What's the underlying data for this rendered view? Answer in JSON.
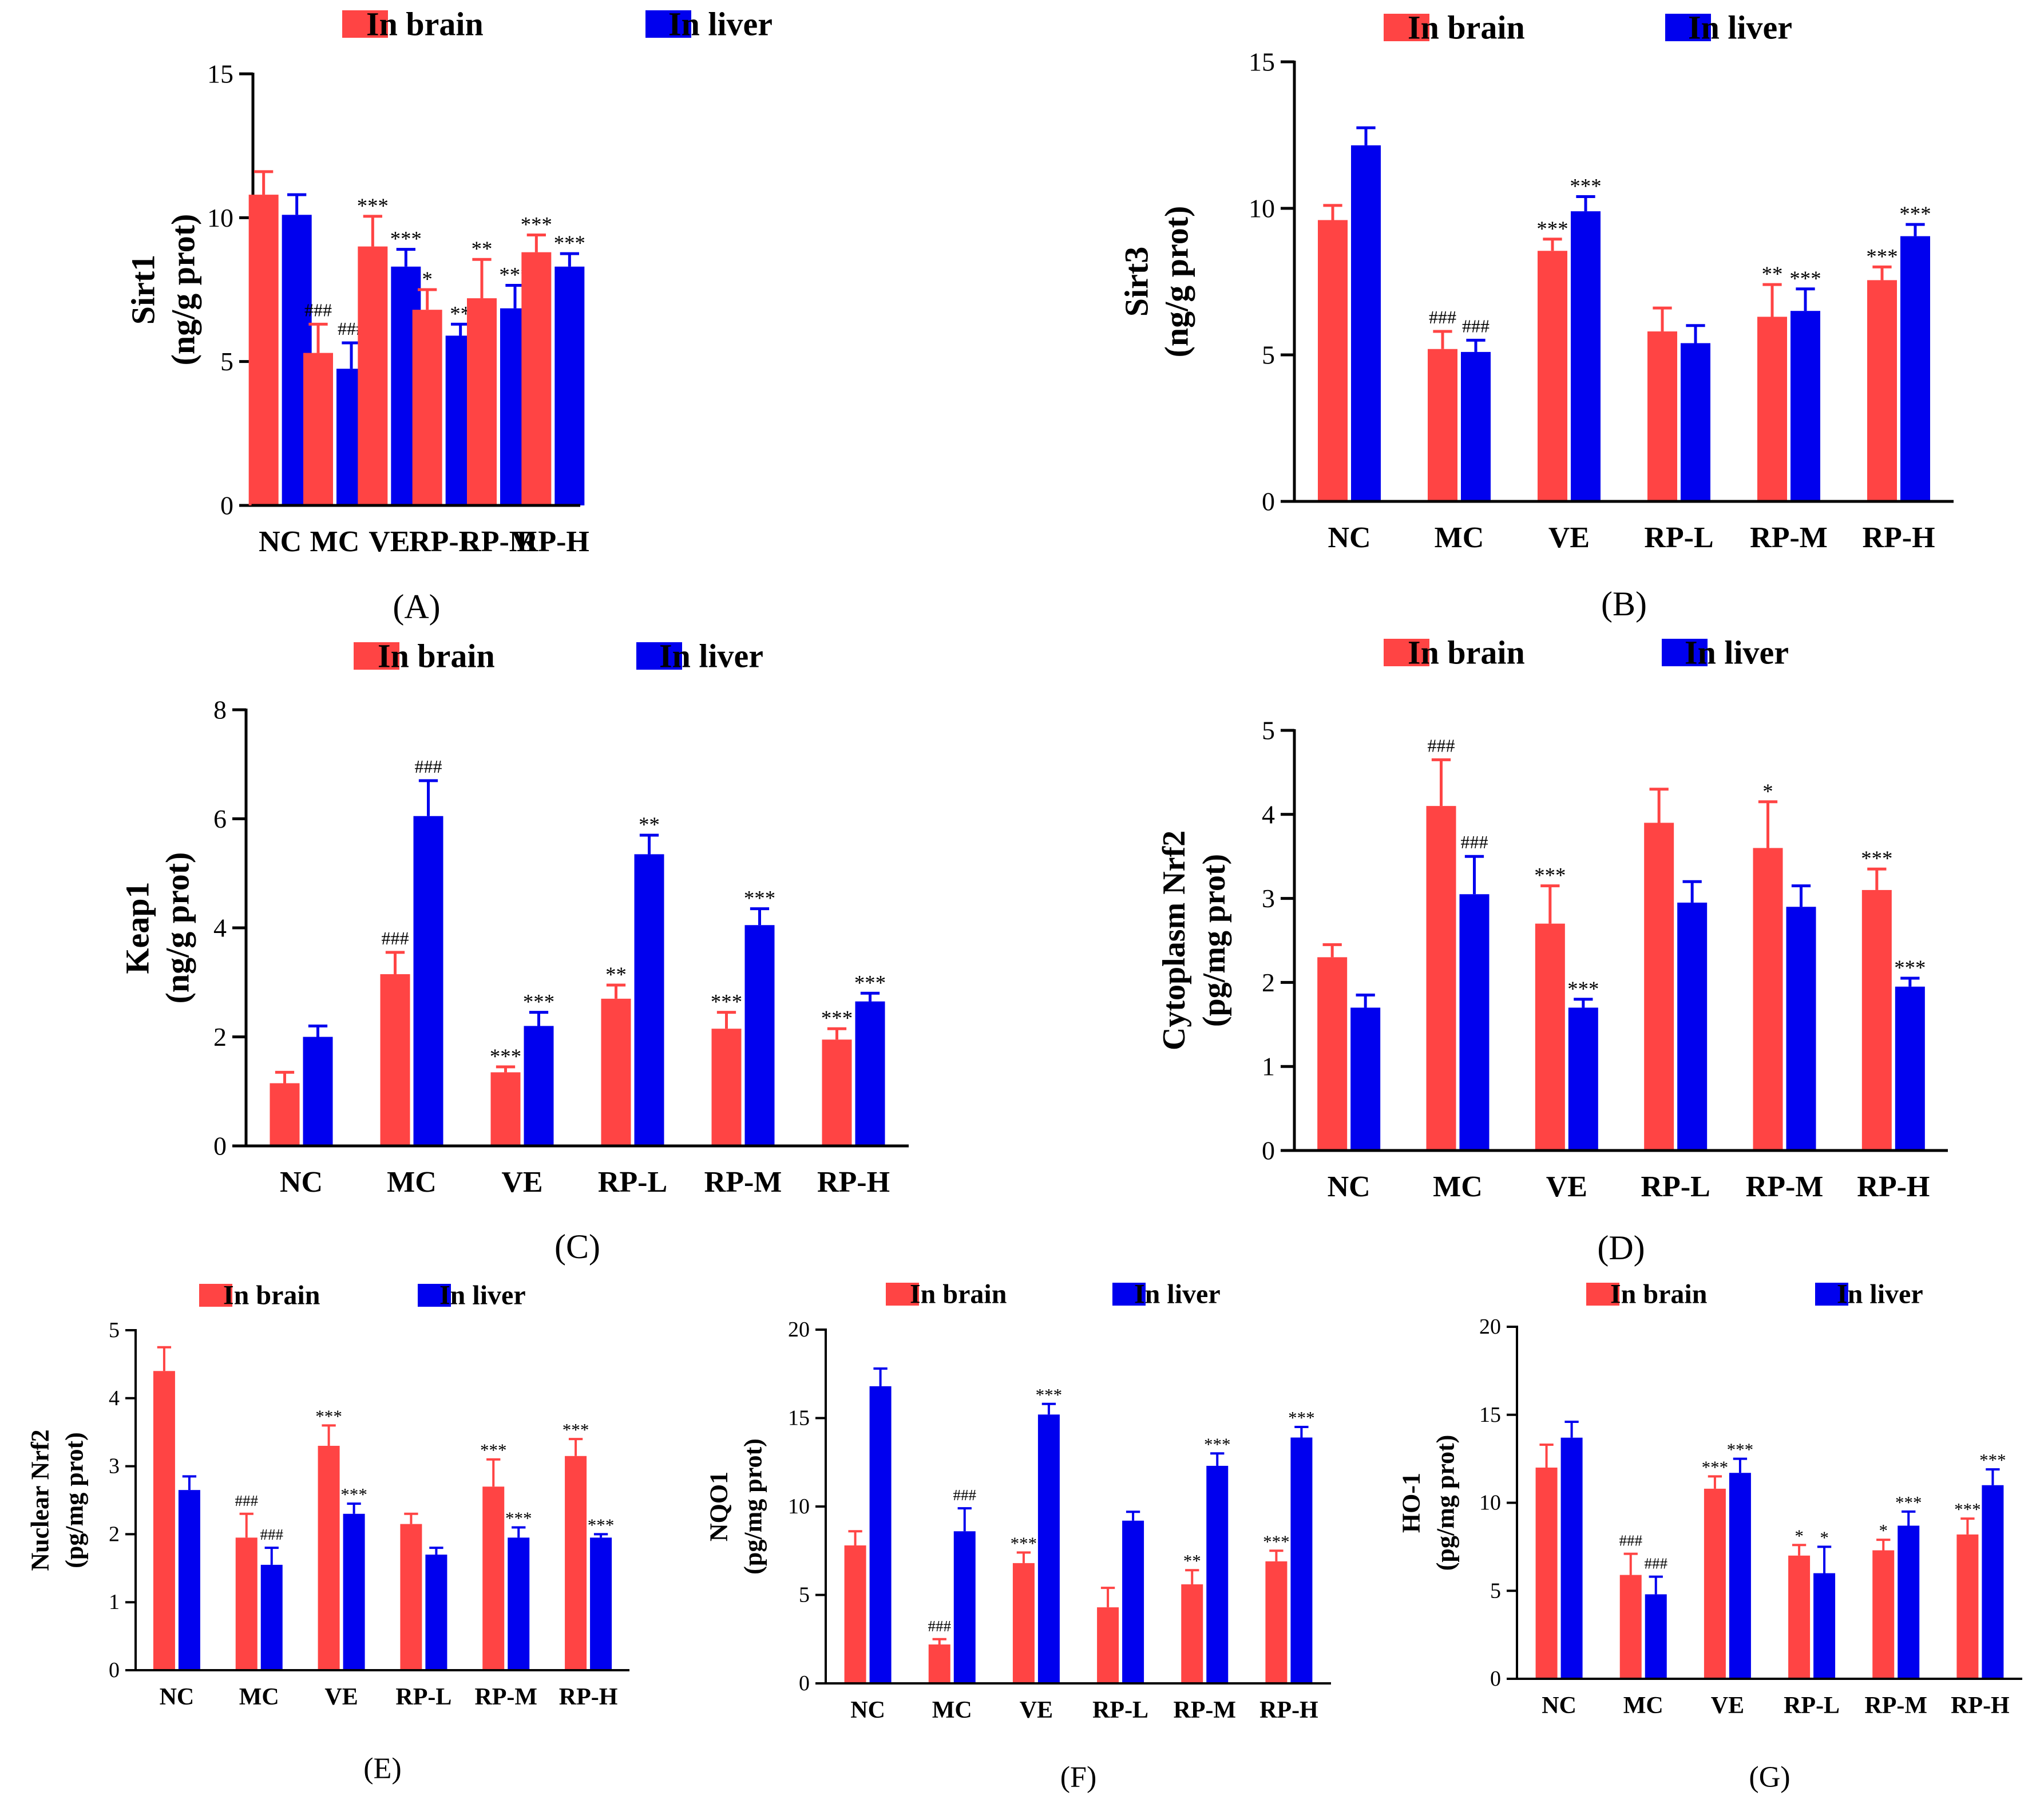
{
  "colors": {
    "brain": "#ff4444",
    "liver": "#0000ee",
    "axis": "#000000"
  },
  "legend": {
    "brain": "In brain",
    "liver": "In liver"
  },
  "chart_data": [
    {
      "type": "bar",
      "panel_label": "(A)",
      "ylabel_lines": [
        "Sirt1",
        "(ng/g prot)"
      ],
      "categories": [
        "NC",
        "MC",
        "VE",
        "RP-L",
        "RP-M",
        "RP-H"
      ],
      "ylim": [
        0,
        15
      ],
      "yticks": [
        0,
        5,
        10,
        15
      ],
      "series": [
        {
          "name": "In brain",
          "values": [
            10.8,
            5.3,
            9.0,
            6.8,
            7.2,
            8.8
          ],
          "errors": [
            0.8,
            1.0,
            1.05,
            0.7,
            1.35,
            0.6
          ],
          "labels": [
            "",
            "###",
            "***",
            "*",
            "**",
            "***"
          ]
        },
        {
          "name": "In liver",
          "values": [
            10.1,
            4.75,
            8.3,
            5.9,
            6.85,
            8.3
          ],
          "errors": [
            0.7,
            0.9,
            0.6,
            0.4,
            0.8,
            0.45
          ],
          "labels": [
            "",
            "###",
            "***",
            "**",
            "***",
            "***"
          ]
        }
      ]
    },
    {
      "type": "bar",
      "panel_label": "(B)",
      "ylabel_lines": [
        "Sirt3",
        "(ng/g prot)"
      ],
      "categories": [
        "NC",
        "MC",
        "VE",
        "RP-L",
        "RP-M",
        "RP-H"
      ],
      "ylim": [
        0,
        15
      ],
      "yticks": [
        0,
        5,
        10,
        15
      ],
      "series": [
        {
          "name": "In brain",
          "values": [
            9.6,
            5.2,
            8.55,
            5.8,
            6.3,
            7.55
          ],
          "errors": [
            0.5,
            0.6,
            0.4,
            0.8,
            1.1,
            0.45
          ],
          "labels": [
            "",
            "###",
            "***",
            "",
            "**",
            "***"
          ]
        },
        {
          "name": "In liver",
          "values": [
            12.15,
            5.1,
            9.9,
            5.4,
            6.5,
            9.05
          ],
          "errors": [
            0.6,
            0.4,
            0.5,
            0.6,
            0.75,
            0.4
          ],
          "labels": [
            "",
            "###",
            "***",
            "",
            "***",
            "***"
          ]
        }
      ]
    },
    {
      "type": "bar",
      "panel_label": "(C)",
      "ylabel_lines": [
        "Keap1",
        "(ng/g prot)"
      ],
      "categories": [
        "NC",
        "MC",
        "VE",
        "RP-L",
        "RP-M",
        "RP-H"
      ],
      "ylim": [
        0,
        8
      ],
      "yticks": [
        0,
        2,
        4,
        6,
        8
      ],
      "series": [
        {
          "name": "In brain",
          "values": [
            1.15,
            3.15,
            1.35,
            2.7,
            2.15,
            1.95
          ],
          "errors": [
            0.2,
            0.4,
            0.1,
            0.25,
            0.3,
            0.2
          ],
          "labels": [
            "",
            "###",
            "***",
            "**",
            "***",
            "***"
          ]
        },
        {
          "name": "In liver",
          "values": [
            2.0,
            6.05,
            2.2,
            5.35,
            4.05,
            2.65
          ],
          "errors": [
            0.2,
            0.65,
            0.25,
            0.35,
            0.3,
            0.15
          ],
          "labels": [
            "",
            "###",
            "***",
            "**",
            "***",
            "***"
          ]
        }
      ]
    },
    {
      "type": "bar",
      "panel_label": "(D)",
      "ylabel_lines": [
        "Cytoplasm Nrf2",
        "(pg/mg prot)"
      ],
      "categories": [
        "NC",
        "MC",
        "VE",
        "RP-L",
        "RP-M",
        "RP-H"
      ],
      "ylim": [
        0,
        5
      ],
      "yticks": [
        0,
        1,
        2,
        3,
        4,
        5
      ],
      "series": [
        {
          "name": "In brain",
          "values": [
            2.3,
            4.1,
            2.7,
            3.9,
            3.6,
            3.1
          ],
          "errors": [
            0.15,
            0.55,
            0.45,
            0.4,
            0.55,
            0.25
          ],
          "labels": [
            "",
            "###",
            "***",
            "",
            "*",
            "***"
          ]
        },
        {
          "name": "In liver",
          "values": [
            1.7,
            3.05,
            1.7,
            2.95,
            2.9,
            1.95
          ],
          "errors": [
            0.15,
            0.45,
            0.1,
            0.25,
            0.25,
            0.1
          ],
          "labels": [
            "",
            "###",
            "***",
            "",
            "",
            "***"
          ]
        }
      ]
    },
    {
      "type": "bar",
      "panel_label": "(E)",
      "ylabel_lines": [
        "Nuclear Nrf2",
        "(pg/mg prot)"
      ],
      "categories": [
        "NC",
        "MC",
        "VE",
        "RP-L",
        "RP-M",
        "RP-H"
      ],
      "ylim": [
        0,
        5
      ],
      "yticks": [
        0,
        1,
        2,
        3,
        4,
        5
      ],
      "series": [
        {
          "name": "In brain",
          "values": [
            4.4,
            1.95,
            3.3,
            2.15,
            2.7,
            3.15
          ],
          "errors": [
            0.35,
            0.35,
            0.3,
            0.15,
            0.4,
            0.25
          ],
          "labels": [
            "",
            "###",
            "***",
            "",
            "***",
            "***"
          ]
        },
        {
          "name": "In liver",
          "values": [
            2.65,
            1.55,
            2.3,
            1.7,
            1.95,
            1.95
          ],
          "errors": [
            0.2,
            0.25,
            0.15,
            0.1,
            0.15,
            0.05
          ],
          "labels": [
            "",
            "###",
            "***",
            "",
            "***",
            "***"
          ]
        }
      ]
    },
    {
      "type": "bar",
      "panel_label": "(F)",
      "ylabel_lines": [
        "NQO1",
        "(pg/mg prot)"
      ],
      "categories": [
        "NC",
        "MC",
        "VE",
        "RP-L",
        "RP-M",
        "RP-H"
      ],
      "ylim": [
        0,
        20
      ],
      "yticks": [
        0,
        5,
        10,
        15,
        20
      ],
      "series": [
        {
          "name": "In brain",
          "values": [
            7.8,
            2.2,
            6.8,
            4.3,
            5.6,
            6.9
          ],
          "errors": [
            0.8,
            0.3,
            0.6,
            1.1,
            0.8,
            0.6
          ],
          "labels": [
            "",
            "###",
            "***",
            "",
            "**",
            "***"
          ]
        },
        {
          "name": "In liver",
          "values": [
            16.8,
            8.6,
            15.2,
            9.2,
            12.3,
            13.9
          ],
          "errors": [
            1.0,
            1.3,
            0.6,
            0.5,
            0.7,
            0.6
          ],
          "labels": [
            "",
            "###",
            "***",
            "",
            "***",
            "***"
          ]
        }
      ]
    },
    {
      "type": "bar",
      "panel_label": "(G)",
      "ylabel_lines": [
        "HO-1",
        "(pg/mg prot)"
      ],
      "categories": [
        "NC",
        "MC",
        "VE",
        "RP-L",
        "RP-M",
        "RP-H"
      ],
      "ylim": [
        0,
        20
      ],
      "yticks": [
        0,
        5,
        10,
        15,
        20
      ],
      "series": [
        {
          "name": "In brain",
          "values": [
            12.0,
            5.9,
            10.8,
            7.0,
            7.3,
            8.2
          ],
          "errors": [
            1.3,
            1.2,
            0.7,
            0.6,
            0.6,
            0.9
          ],
          "labels": [
            "",
            "###",
            "***",
            "*",
            "*",
            "***"
          ]
        },
        {
          "name": "In liver",
          "values": [
            13.7,
            4.8,
            11.7,
            6.0,
            8.7,
            11.0
          ],
          "errors": [
            0.9,
            1.0,
            0.8,
            1.5,
            0.8,
            0.9
          ],
          "labels": [
            "",
            "###",
            "***",
            "*",
            "***",
            "***"
          ]
        }
      ]
    }
  ]
}
